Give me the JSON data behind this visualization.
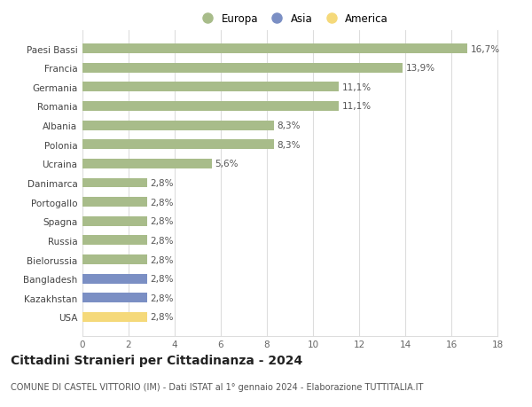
{
  "categories": [
    "USA",
    "Kazakhstan",
    "Bangladesh",
    "Bielorussia",
    "Russia",
    "Spagna",
    "Portogallo",
    "Danimarca",
    "Ucraina",
    "Polonia",
    "Albania",
    "Romania",
    "Germania",
    "Francia",
    "Paesi Bassi"
  ],
  "values": [
    2.8,
    2.8,
    2.8,
    2.8,
    2.8,
    2.8,
    2.8,
    2.8,
    5.6,
    8.3,
    8.3,
    11.1,
    11.1,
    13.9,
    16.7
  ],
  "labels": [
    "2,8%",
    "2,8%",
    "2,8%",
    "2,8%",
    "2,8%",
    "2,8%",
    "2,8%",
    "2,8%",
    "5,6%",
    "8,3%",
    "8,3%",
    "11,1%",
    "11,1%",
    "13,9%",
    "16,7%"
  ],
  "colors": [
    "#f5d97a",
    "#7b8fc4",
    "#7b8fc4",
    "#a8bc8a",
    "#a8bc8a",
    "#a8bc8a",
    "#a8bc8a",
    "#a8bc8a",
    "#a8bc8a",
    "#a8bc8a",
    "#a8bc8a",
    "#a8bc8a",
    "#a8bc8a",
    "#a8bc8a",
    "#a8bc8a"
  ],
  "legend_labels": [
    "Europa",
    "Asia",
    "America"
  ],
  "legend_colors": [
    "#a8bc8a",
    "#7b8fc4",
    "#f5d97a"
  ],
  "title": "Cittadini Stranieri per Cittadinanza - 2024",
  "subtitle": "COMUNE DI CASTEL VITTORIO (IM) - Dati ISTAT al 1° gennaio 2024 - Elaborazione TUTTITALIA.IT",
  "xlim": [
    0,
    18
  ],
  "xticks": [
    0,
    2,
    4,
    6,
    8,
    10,
    12,
    14,
    16,
    18
  ],
  "bar_height": 0.5,
  "background_color": "#ffffff",
  "grid_color": "#dddddd",
  "label_fontsize": 7.5,
  "tick_fontsize": 7.5,
  "title_fontsize": 10,
  "subtitle_fontsize": 7
}
